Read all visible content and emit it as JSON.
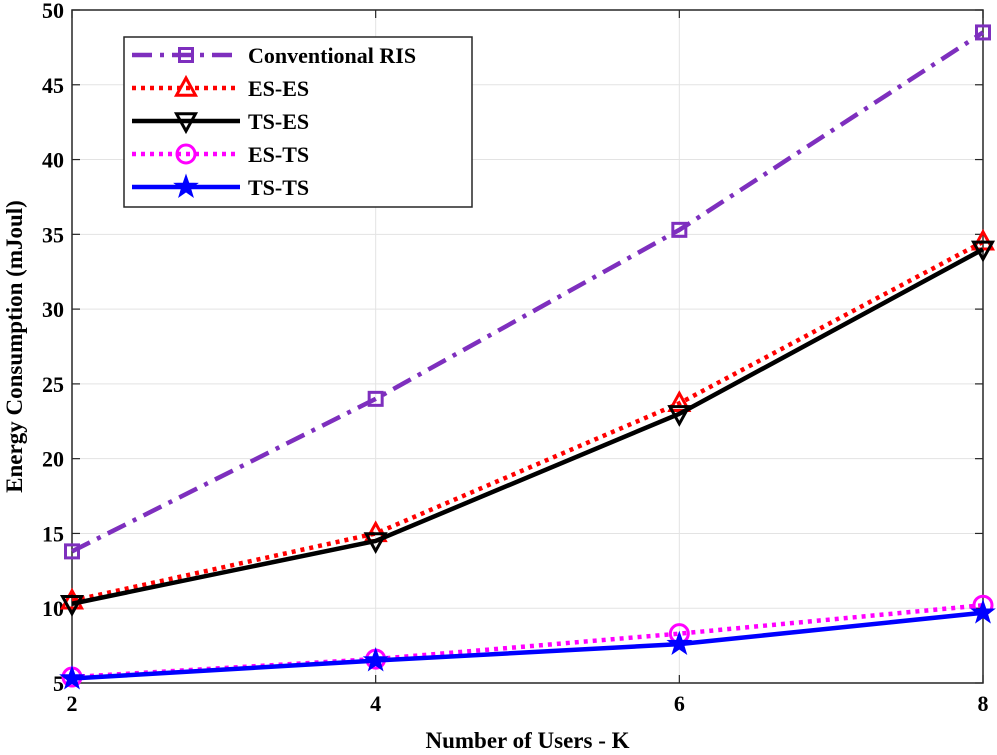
{
  "chart_data": {
    "type": "line",
    "title": "",
    "xlabel": "Number of Users - K",
    "ylabel": "Energy Consumption (mJoul)",
    "x": [
      2,
      4,
      6,
      8
    ],
    "xlim": [
      2,
      8
    ],
    "ylim": [
      5,
      50
    ],
    "xticks": [
      2,
      4,
      6,
      8
    ],
    "yticks": [
      5,
      10,
      15,
      20,
      25,
      30,
      35,
      40,
      45,
      50
    ],
    "grid": true,
    "legend_position": "top-left",
    "series": [
      {
        "name": "Conventional RIS",
        "values": [
          13.8,
          24.0,
          35.3,
          48.5
        ],
        "color": "#7E2FBE",
        "dash": "dashdot",
        "marker": "square"
      },
      {
        "name": "ES-ES",
        "values": [
          10.5,
          15.0,
          23.7,
          34.5
        ],
        "color": "#FF0000",
        "dash": "dotted",
        "marker": "triangle-up"
      },
      {
        "name": "TS-ES",
        "values": [
          10.3,
          14.5,
          23.0,
          34.0
        ],
        "color": "#000000",
        "dash": "solid",
        "marker": "triangle-down"
      },
      {
        "name": "ES-TS",
        "values": [
          5.4,
          6.6,
          8.3,
          10.2
        ],
        "color": "#FF00FF",
        "dash": "dotted",
        "marker": "circle"
      },
      {
        "name": "TS-TS",
        "values": [
          5.3,
          6.5,
          7.6,
          9.7
        ],
        "color": "#0000FF",
        "dash": "solid",
        "marker": "star"
      }
    ]
  }
}
